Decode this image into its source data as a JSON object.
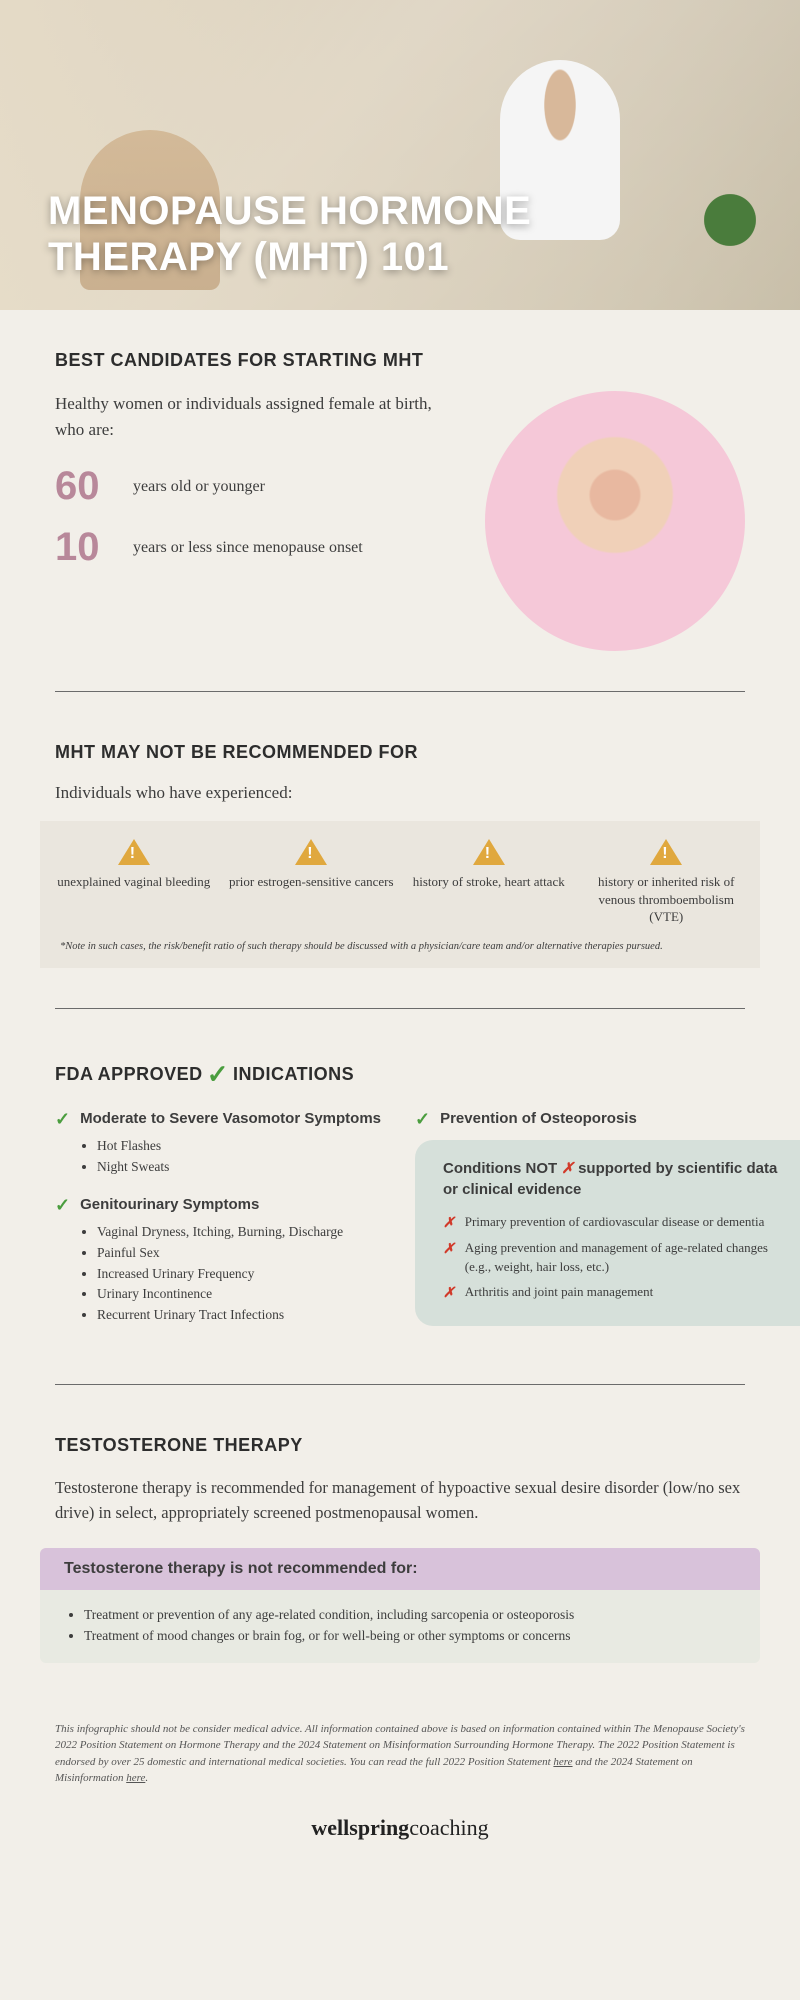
{
  "hero": {
    "title_line1": "MENOPAUSE HORMONE",
    "title_line2": "THERAPY (MHT)  101"
  },
  "candidates": {
    "heading": "BEST CANDIDATES FOR STARTING MHT",
    "intro": "Healthy women or individuals assigned female at birth, who are:",
    "stats": [
      {
        "num": "60",
        "label": "years old or younger"
      },
      {
        "num": "10",
        "label": "years or less since menopause onset"
      }
    ]
  },
  "not_rec": {
    "heading": "MHT MAY NOT BE RECOMMENDED FOR",
    "intro": "Individuals who have experienced:",
    "items": [
      "unexplained vaginal bleeding",
      "prior estrogen-sensitive cancers",
      "history of stroke, heart attack",
      "history or inherited risk of venous thromboembolism (VTE)"
    ],
    "note": "*Note in such cases, the risk/benefit ratio of such therapy should be discussed with a physician/care team and/or alternative therapies pursued."
  },
  "fda": {
    "heading_a": "FDA APPROVED",
    "heading_b": "INDICATIONS",
    "col1": [
      {
        "title": "Moderate to Severe Vasomotor Symptoms",
        "bullets": [
          "Hot Flashes",
          "Night Sweats"
        ]
      },
      {
        "title": "Genitourinary Symptoms",
        "bullets": [
          "Vaginal Dryness, Itching, Burning, Discharge",
          "Painful Sex",
          "Increased Urinary Frequency",
          "Urinary Incontinence",
          "Recurrent Urinary Tract Infections"
        ]
      }
    ],
    "col2_title": "Prevention of Osteoporosis",
    "not_supported": {
      "title_a": "Conditions NOT",
      "title_b": "supported by scientific data or clinical evidence",
      "items": [
        "Primary prevention of cardiovascular disease or dementia",
        "Aging prevention and management of age-related changes (e.g., weight, hair loss, etc.)",
        "Arthritis and joint pain management"
      ]
    }
  },
  "testosterone": {
    "heading": "TESTOSTERONE THERAPY",
    "text": "Testosterone therapy is recommended for management of hypoactive sexual desire disorder (low/no sex drive) in select, appropriately screened postmenopausal women.",
    "box_title": "Testosterone therapy is not recommended for:",
    "box_bullets": [
      "Treatment or prevention of any age-related condition, including sarcopenia or osteoporosis",
      "Treatment of mood changes or brain fog, or for well-being or other symptoms or concerns"
    ]
  },
  "disclaimer": {
    "text_a": "This infographic should not be consider medical advice.  All information contained above is based on information contained within The Menopause Society's 2022 Position Statement on Hormone Therapy and the 2024 Statement on Misinformation Surrounding Hormone Therapy. The 2022 Position Statement is endorsed by over 25 domestic and international medical societies. You can read the full 2022 Position Statement ",
    "link1": "here",
    "text_b": " and the 2024 Statement on Misinformation ",
    "link2": "here",
    "text_c": "."
  },
  "footer": {
    "brand_a": "wellspring",
    "brand_b": "coaching"
  },
  "colors": {
    "bg": "#f2efe9",
    "accent_pink": "#b8889a",
    "warn": "#e0a83e",
    "green": "#4a9d3e",
    "red": "#d13a2a",
    "mint": "#d6e0da",
    "lavender": "#d8c2da"
  }
}
